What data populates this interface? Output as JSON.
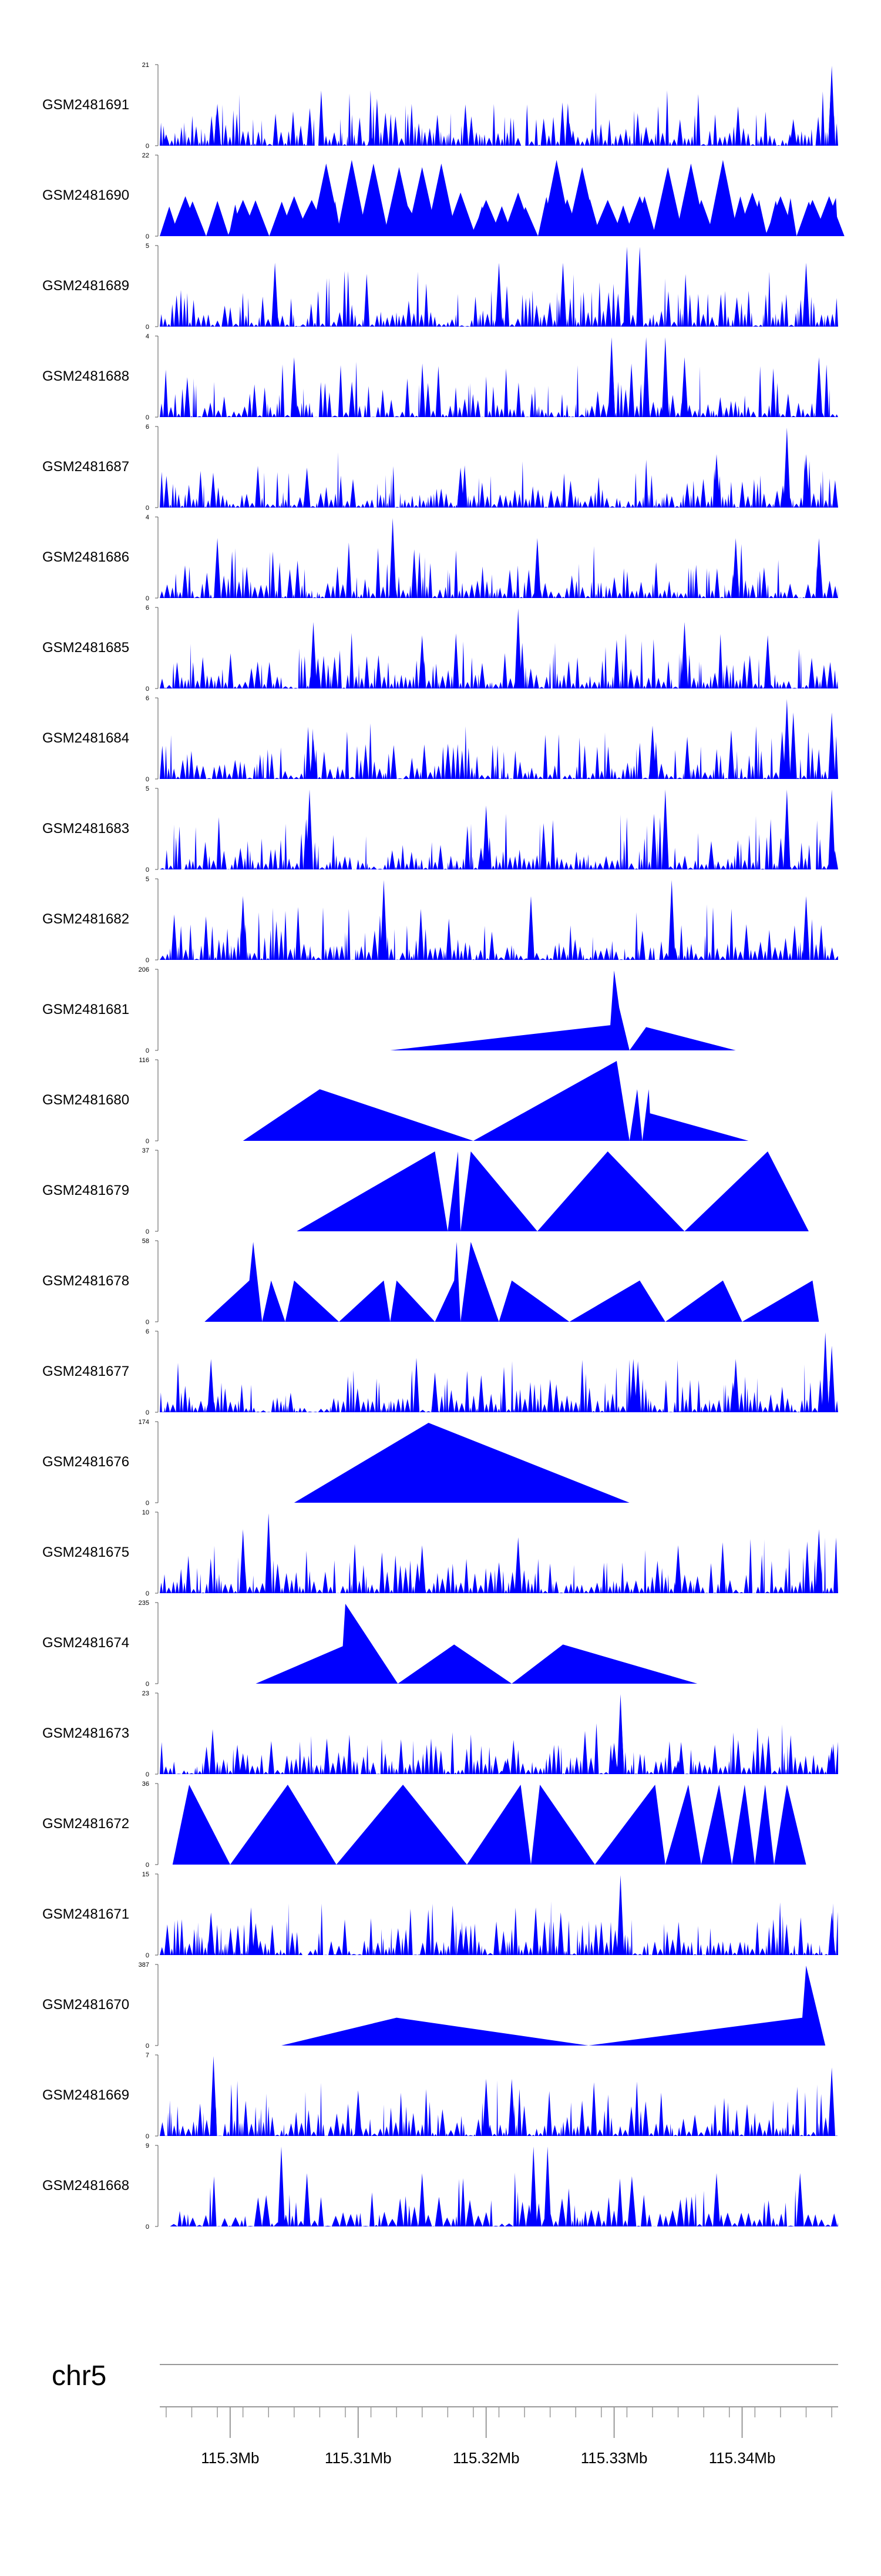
{
  "chart_data": {
    "type": "area",
    "title": "",
    "chromosome": "chr5",
    "region_mb": [
      115.2945,
      115.3475
    ],
    "axis_ticks_mb": [
      115.3,
      115.31,
      115.32,
      115.33,
      115.34
    ],
    "axis_tick_labels": [
      "115.3Mb",
      "115.31Mb",
      "115.32Mb",
      "115.33Mb",
      "115.34Mb"
    ],
    "color": "#0000ff",
    "tracks": [
      {
        "name": "GSM2481691",
        "max": 21,
        "ymin_label": "0",
        "ymax_label": "21",
        "style": "dense",
        "peaks": [
          [
            115.299,
            11
          ],
          [
            115.295,
            3
          ],
          [
            115.347,
            21
          ],
          [
            115.344,
            7
          ],
          [
            115.3325,
            5
          ],
          [
            115.3265,
            6
          ],
          [
            115.311,
            3
          ]
        ]
      },
      {
        "name": "GSM2481690",
        "max": 22,
        "ymin_label": "0",
        "ymax_label": "22",
        "style": "sparse",
        "peaks": [
          [
            115.2965,
            11
          ],
          [
            115.301,
            10
          ],
          [
            115.305,
            11
          ],
          [
            115.3075,
            20
          ],
          [
            115.3095,
            21
          ],
          [
            115.3112,
            20
          ],
          [
            115.3132,
            19
          ],
          [
            115.315,
            19
          ],
          [
            115.3165,
            20
          ],
          [
            115.318,
            12
          ],
          [
            115.32,
            10
          ],
          [
            115.3225,
            12
          ],
          [
            115.3255,
            21
          ],
          [
            115.3275,
            19
          ],
          [
            115.3295,
            10
          ],
          [
            115.332,
            11
          ],
          [
            115.3342,
            19
          ],
          [
            115.336,
            20
          ],
          [
            115.3385,
            21
          ],
          [
            115.3408,
            12
          ],
          [
            115.343,
            11
          ],
          [
            115.3455,
            10
          ],
          [
            115.3468,
            11
          ]
        ]
      },
      {
        "name": "GSM2481689",
        "max": 5,
        "ymin_label": "0",
        "ymax_label": "5",
        "style": "dense",
        "peaks": [
          [
            115.331,
            5
          ],
          [
            115.332,
            5
          ],
          [
            115.3035,
            4
          ],
          [
            115.321,
            4
          ],
          [
            115.326,
            4
          ],
          [
            115.345,
            4
          ]
        ]
      },
      {
        "name": "GSM2481688",
        "max": 4,
        "ymin_label": "0",
        "ymax_label": "4",
        "style": "dense",
        "peaks": [
          [
            115.334,
            4
          ],
          [
            115.3325,
            4
          ],
          [
            115.3298,
            4
          ],
          [
            115.3355,
            3
          ],
          [
            115.305,
            3
          ],
          [
            115.346,
            3
          ]
        ]
      },
      {
        "name": "GSM2481687",
        "max": 6,
        "ymin_label": "0",
        "ymax_label": "6",
        "style": "dense",
        "peaks": [
          [
            115.3435,
            6
          ],
          [
            115.345,
            4
          ],
          [
            115.318,
            3
          ],
          [
            115.306,
            3
          ],
          [
            115.338,
            4
          ]
        ]
      },
      {
        "name": "GSM2481686",
        "max": 4,
        "ymin_label": "0",
        "ymax_label": "4",
        "style": "dense",
        "peaks": [
          [
            115.3127,
            4
          ],
          [
            115.324,
            3
          ],
          [
            115.3395,
            3
          ],
          [
            115.299,
            3
          ],
          [
            115.346,
            3
          ]
        ]
      },
      {
        "name": "GSM2481685",
        "max": 6,
        "ymin_label": "0",
        "ymax_label": "6",
        "style": "dense",
        "peaks": [
          [
            115.3225,
            6
          ],
          [
            115.3065,
            5
          ],
          [
            115.3355,
            5
          ],
          [
            115.315,
            4
          ],
          [
            115.342,
            4
          ]
        ]
      },
      {
        "name": "GSM2481684",
        "max": 6,
        "ymin_label": "0",
        "ymax_label": "6",
        "style": "dense",
        "peaks": [
          [
            115.3435,
            6
          ],
          [
            115.344,
            5
          ],
          [
            115.347,
            5
          ],
          [
            115.333,
            4
          ],
          [
            115.3065,
            3
          ]
        ]
      },
      {
        "name": "GSM2481683",
        "max": 5,
        "ymin_label": "0",
        "ymax_label": "5",
        "style": "dense",
        "peaks": [
          [
            115.3062,
            5
          ],
          [
            115.334,
            5
          ],
          [
            115.3435,
            5
          ],
          [
            115.347,
            5
          ],
          [
            115.32,
            4
          ]
        ]
      },
      {
        "name": "GSM2481682",
        "max": 5,
        "ymin_label": "0",
        "ymax_label": "5",
        "style": "dense",
        "peaks": [
          [
            115.312,
            5
          ],
          [
            115.3345,
            5
          ],
          [
            115.3235,
            4
          ],
          [
            115.301,
            4
          ],
          [
            115.345,
            4
          ]
        ]
      },
      {
        "name": "GSM2481681",
        "max": 206,
        "ymin_label": "0",
        "ymax_label": "206",
        "style": "segments",
        "segments": [
          [
            115.3125,
            0,
            115.3297,
            65
          ],
          [
            115.3297,
            65,
            115.33,
            206
          ],
          [
            115.33,
            206,
            115.3304,
            110
          ],
          [
            115.3304,
            110,
            115.3312,
            0
          ],
          [
            115.3312,
            0,
            115.3325,
            60
          ],
          [
            115.3325,
            60,
            115.3395,
            0
          ]
        ]
      },
      {
        "name": "GSM2481680",
        "max": 116,
        "ymin_label": "0",
        "ymax_label": "116",
        "style": "segments",
        "segments": [
          [
            115.301,
            0,
            115.307,
            75
          ],
          [
            115.307,
            75,
            115.319,
            0
          ],
          [
            115.319,
            0,
            115.3302,
            116
          ],
          [
            115.3302,
            116,
            115.3312,
            0
          ],
          [
            115.3312,
            0,
            115.3318,
            75
          ],
          [
            115.3318,
            75,
            115.3322,
            0
          ],
          [
            115.3322,
            0,
            115.3327,
            75
          ],
          [
            115.3327,
            75,
            115.3328,
            40
          ],
          [
            115.3328,
            40,
            115.3405,
            0
          ]
        ]
      },
      {
        "name": "GSM2481679",
        "max": 37,
        "ymin_label": "0",
        "ymax_label": "37",
        "style": "segments",
        "segments": [
          [
            115.3052,
            0,
            115.316,
            37
          ],
          [
            115.316,
            37,
            115.317,
            0
          ],
          [
            115.317,
            0,
            115.3178,
            37
          ],
          [
            115.3178,
            37,
            115.318,
            0
          ],
          [
            115.318,
            0,
            115.3188,
            37
          ],
          [
            115.3188,
            37,
            115.324,
            0
          ],
          [
            115.324,
            0,
            115.3295,
            37
          ],
          [
            115.3295,
            37,
            115.3355,
            0
          ],
          [
            115.3355,
            0,
            115.342,
            37
          ],
          [
            115.342,
            37,
            115.3452,
            0
          ]
        ]
      },
      {
        "name": "GSM2481678",
        "max": 58,
        "ymin_label": "0",
        "ymax_label": "58",
        "style": "segments",
        "segments": [
          [
            115.298,
            0,
            115.3015,
            30
          ],
          [
            115.3015,
            30,
            115.3018,
            58
          ],
          [
            115.3018,
            58,
            115.3025,
            0
          ],
          [
            115.3025,
            0,
            115.3032,
            30
          ],
          [
            115.3032,
            30,
            115.3043,
            0
          ],
          [
            115.3043,
            0,
            115.305,
            30
          ],
          [
            115.305,
            30,
            115.3085,
            0
          ],
          [
            115.3085,
            0,
            115.312,
            30
          ],
          [
            115.312,
            30,
            115.3125,
            0
          ],
          [
            115.3125,
            0,
            115.313,
            30
          ],
          [
            115.313,
            30,
            115.316,
            0
          ],
          [
            115.316,
            0,
            115.3175,
            30
          ],
          [
            115.3175,
            30,
            115.3177,
            58
          ],
          [
            115.3177,
            58,
            115.318,
            0
          ],
          [
            115.318,
            0,
            115.3188,
            58
          ],
          [
            115.3188,
            58,
            115.321,
            0
          ],
          [
            115.321,
            0,
            115.322,
            30
          ],
          [
            115.322,
            30,
            115.3265,
            0
          ],
          [
            115.3265,
            0,
            115.332,
            30
          ],
          [
            115.332,
            30,
            115.334,
            0
          ],
          [
            115.334,
            0,
            115.3385,
            30
          ],
          [
            115.3385,
            30,
            115.34,
            0
          ],
          [
            115.34,
            0,
            115.3455,
            30
          ],
          [
            115.3455,
            30,
            115.346,
            0
          ]
        ]
      },
      {
        "name": "GSM2481677",
        "max": 6,
        "ymin_label": "0",
        "ymax_label": "6",
        "style": "dense",
        "peaks": [
          [
            115.3465,
            6
          ],
          [
            115.347,
            5
          ],
          [
            115.2985,
            4
          ],
          [
            115.3395,
            4
          ],
          [
            115.3315,
            4
          ],
          [
            115.316,
            3
          ]
        ]
      },
      {
        "name": "GSM2481676",
        "max": 174,
        "ymin_label": "0",
        "ymax_label": "174",
        "style": "segments",
        "segments": [
          [
            115.305,
            0,
            115.3155,
            174
          ],
          [
            115.3155,
            174,
            115.3312,
            0
          ]
        ]
      },
      {
        "name": "GSM2481675",
        "max": 10,
        "ymin_label": "0",
        "ymax_label": "10",
        "style": "dense",
        "peaks": [
          [
            115.303,
            10
          ],
          [
            115.301,
            8
          ],
          [
            115.315,
            6
          ],
          [
            115.3225,
            7
          ],
          [
            115.335,
            6
          ],
          [
            115.346,
            8
          ]
        ]
      },
      {
        "name": "GSM2481674",
        "max": 235,
        "ymin_label": "0",
        "ymax_label": "235",
        "style": "segments",
        "segments": [
          [
            115.302,
            0,
            115.3088,
            110
          ],
          [
            115.3088,
            110,
            115.309,
            235
          ],
          [
            115.309,
            235,
            115.3131,
            0
          ],
          [
            115.3131,
            0,
            115.3175,
            115
          ],
          [
            115.3175,
            115,
            115.322,
            0
          ],
          [
            115.322,
            0,
            115.326,
            115
          ],
          [
            115.326,
            115,
            115.3365,
            0
          ]
        ]
      },
      {
        "name": "GSM2481673",
        "max": 23,
        "ymin_label": "0",
        "ymax_label": "23",
        "style": "dense",
        "peaks": [
          [
            115.3305,
            23
          ],
          [
            115.33,
            9
          ],
          [
            115.301,
            6
          ],
          [
            115.3215,
            4
          ],
          [
            115.335,
            4
          ],
          [
            115.347,
            8
          ]
        ]
      },
      {
        "name": "GSM2481672",
        "max": 36,
        "ymin_label": "0",
        "ymax_label": "36",
        "style": "segments",
        "segments": [
          [
            115.2955,
            0,
            115.2968,
            36
          ],
          [
            115.2968,
            36,
            115.3,
            0
          ],
          [
            115.3,
            0,
            115.3045,
            36
          ],
          [
            115.3045,
            36,
            115.3083,
            0
          ],
          [
            115.3083,
            0,
            115.3135,
            36
          ],
          [
            115.3135,
            36,
            115.3185,
            0
          ],
          [
            115.3185,
            0,
            115.3227,
            36
          ],
          [
            115.3227,
            36,
            115.3235,
            0
          ],
          [
            115.3235,
            0,
            115.3242,
            36
          ],
          [
            115.3242,
            36,
            115.3285,
            0
          ],
          [
            115.3285,
            0,
            115.3332,
            36
          ],
          [
            115.3332,
            36,
            115.334,
            0
          ],
          [
            115.334,
            0,
            115.3358,
            36
          ],
          [
            115.3358,
            36,
            115.3368,
            0
          ],
          [
            115.3368,
            0,
            115.3382,
            36
          ],
          [
            115.3382,
            36,
            115.3392,
            0
          ],
          [
            115.3392,
            0,
            115.3402,
            36
          ],
          [
            115.3402,
            36,
            115.341,
            0
          ],
          [
            115.341,
            0,
            115.3418,
            36
          ],
          [
            115.3418,
            36,
            115.3425,
            0
          ],
          [
            115.3425,
            0,
            115.3435,
            36
          ],
          [
            115.3435,
            36,
            115.345,
            0
          ]
        ]
      },
      {
        "name": "GSM2481671",
        "max": 15,
        "ymin_label": "0",
        "ymax_label": "15",
        "style": "dense",
        "peaks": [
          [
            115.3305,
            15
          ],
          [
            115.2985,
            8
          ],
          [
            115.302,
            6
          ],
          [
            115.318,
            5
          ],
          [
            115.347,
            8
          ]
        ]
      },
      {
        "name": "GSM2481670",
        "max": 387,
        "ymin_label": "0",
        "ymax_label": "387",
        "style": "segments",
        "segments": [
          [
            115.304,
            0,
            115.313,
            135
          ],
          [
            115.313,
            135,
            115.328,
            0
          ],
          [
            115.328,
            0,
            115.3447,
            135
          ],
          [
            115.3447,
            135,
            115.345,
            387
          ],
          [
            115.345,
            387,
            115.3465,
            0
          ]
        ]
      },
      {
        "name": "GSM2481669",
        "max": 7,
        "ymin_label": "0",
        "ymax_label": "7",
        "style": "dense",
        "peaks": [
          [
            115.2987,
            7
          ],
          [
            115.32,
            5
          ],
          [
            115.322,
            5
          ],
          [
            115.347,
            6
          ],
          [
            115.31,
            4
          ]
        ]
      },
      {
        "name": "GSM2481668",
        "max": 9,
        "ymin_label": "0",
        "ymax_label": "9",
        "style": "sparse-dense",
        "peaks": [
          [
            115.304,
            9
          ],
          [
            115.3237,
            9
          ],
          [
            115.3248,
            9
          ],
          [
            115.306,
            6
          ],
          [
            115.315,
            6
          ],
          [
            115.338,
            6
          ]
        ]
      }
    ]
  }
}
